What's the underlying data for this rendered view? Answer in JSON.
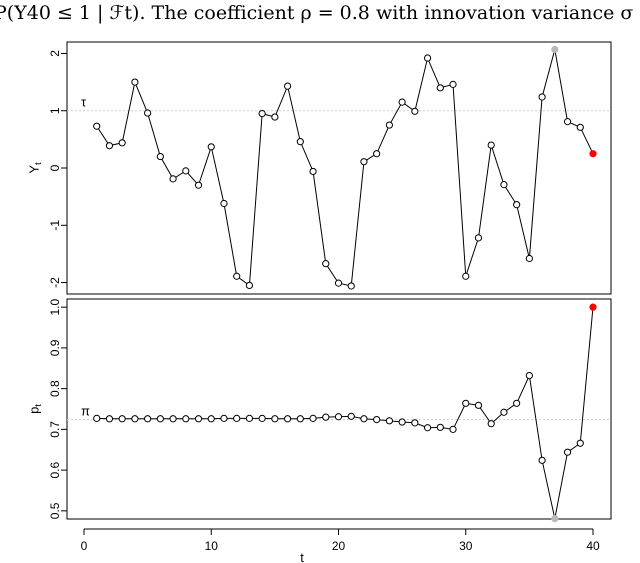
{
  "caption_text": "P(Y40 ≤ 1 | ℱt).   The coefficient ρ = 0.8 with innovation variance σ",
  "chart_data": [
    {
      "type": "line",
      "panel": "top",
      "ylabel": "Y",
      "ylabel_sub": "t",
      "reference_label": "τ",
      "reference_value": 1,
      "ylim": [
        -2.2,
        2.2
      ],
      "yticks": [
        "-2",
        "-1",
        "0",
        "1",
        "2"
      ],
      "yticks_values": [
        -2,
        -1,
        0,
        1,
        2
      ],
      "x": [
        1,
        2,
        3,
        4,
        5,
        6,
        7,
        8,
        9,
        10,
        11,
        12,
        13,
        14,
        15,
        16,
        17,
        18,
        19,
        20,
        21,
        22,
        23,
        24,
        25,
        26,
        27,
        28,
        29,
        30,
        31,
        32,
        33,
        34,
        35,
        36,
        37,
        38,
        39,
        40
      ],
      "values": [
        0.73,
        0.39,
        0.44,
        1.5,
        0.96,
        0.2,
        -0.19,
        -0.05,
        -0.3,
        0.37,
        -0.62,
        -1.89,
        -2.05,
        0.95,
        0.89,
        1.43,
        0.46,
        -0.06,
        -1.67,
        -2.01,
        -2.06,
        0.11,
        0.25,
        0.75,
        1.15,
        0.99,
        1.92,
        1.4,
        1.46,
        -1.89,
        -1.22,
        0.4,
        -0.29,
        -0.64,
        -1.58,
        1.24,
        2.07,
        0.81,
        0.71,
        0.25
      ],
      "highlight": [
        {
          "x": 37,
          "color": "#b8b8b8"
        },
        {
          "x": 40,
          "color": "#ff0000"
        }
      ]
    },
    {
      "type": "line",
      "panel": "bottom",
      "xlabel": "t",
      "ylabel": "p",
      "ylabel_sub": "t",
      "reference_label": "π",
      "reference_value": 0.724,
      "xlim": [
        0,
        42
      ],
      "xticks": [
        "0",
        "10",
        "20",
        "30",
        "40"
      ],
      "xticks_values": [
        0,
        10,
        20,
        30,
        40
      ],
      "ylim": [
        0.48,
        1.02
      ],
      "yticks": [
        "0.5",
        "0.6",
        "0.7",
        "0.8",
        "0.9",
        "1.0"
      ],
      "yticks_values": [
        0.5,
        0.6,
        0.7,
        0.8,
        0.9,
        1.0
      ],
      "x": [
        1,
        2,
        3,
        4,
        5,
        6,
        7,
        8,
        9,
        10,
        11,
        12,
        13,
        14,
        15,
        16,
        17,
        18,
        19,
        20,
        21,
        22,
        23,
        24,
        25,
        26,
        27,
        28,
        29,
        30,
        31,
        32,
        33,
        34,
        35,
        36,
        37,
        38,
        39,
        40
      ],
      "values": [
        0.727,
        0.726,
        0.726,
        0.726,
        0.726,
        0.726,
        0.726,
        0.726,
        0.726,
        0.726,
        0.727,
        0.727,
        0.727,
        0.727,
        0.726,
        0.726,
        0.726,
        0.727,
        0.73,
        0.731,
        0.732,
        0.726,
        0.724,
        0.721,
        0.718,
        0.716,
        0.704,
        0.705,
        0.7,
        0.764,
        0.759,
        0.714,
        0.742,
        0.764,
        0.832,
        0.624,
        0.481,
        0.644,
        0.666,
        1.0
      ],
      "highlight": [
        {
          "x": 37,
          "color": "#b8b8b8"
        },
        {
          "x": 40,
          "color": "#ff0000"
        }
      ]
    }
  ]
}
